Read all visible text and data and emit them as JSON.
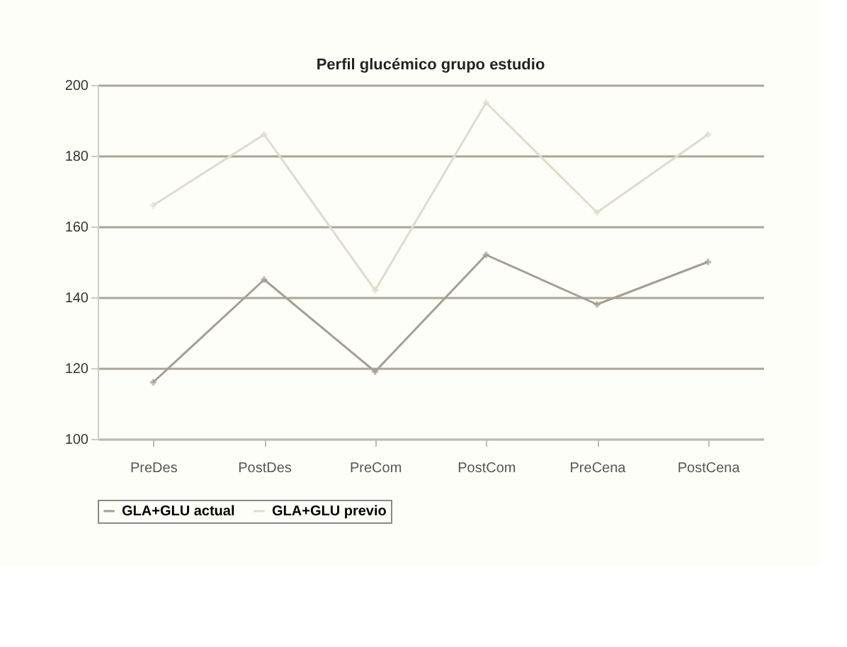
{
  "chart_data": {
    "type": "line",
    "title": "Perfil glucémico grupo estudio",
    "categories": [
      "PreDes",
      "PostDes",
      "PreCom",
      "PostCom",
      "PreCena",
      "PostCena"
    ],
    "series": [
      {
        "name": "GLA+GLU actual",
        "color": "#a39f94",
        "values": [
          116,
          145,
          119,
          152,
          138,
          150
        ]
      },
      {
        "name": "GLA+GLU previo",
        "color": "#dedbcf",
        "values": [
          166,
          186,
          142,
          195,
          164,
          186
        ]
      }
    ],
    "ylim": [
      100,
      200
    ],
    "yticks": [
      100,
      120,
      140,
      160,
      180,
      200
    ],
    "grid": "y",
    "legend": "bottom",
    "marker": "cross",
    "line_style": "solid"
  }
}
